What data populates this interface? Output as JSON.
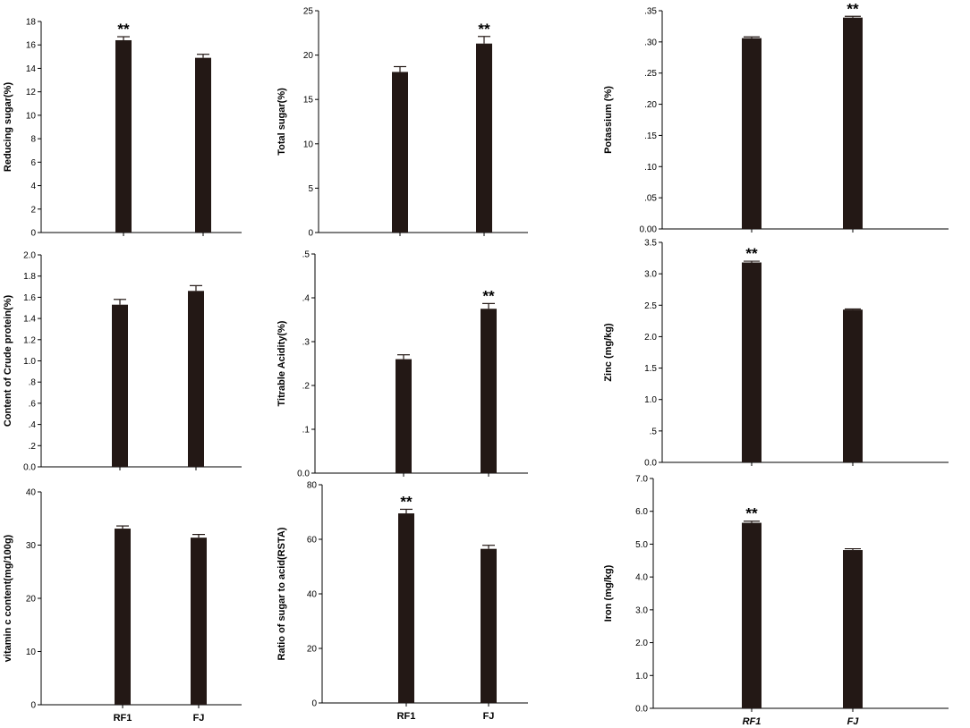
{
  "chart_data": [
    {
      "type": "bar",
      "categories": [
        "RF1",
        "FJ"
      ],
      "values": [
        16.4,
        14.9
      ],
      "errors": [
        0.3,
        0.3
      ],
      "significance": [
        "**",
        ""
      ],
      "ylabel": "Reducing sugar(%)",
      "ylim": [
        0,
        18
      ],
      "yticks": [
        "0",
        "2",
        "4",
        "6",
        "8",
        "10",
        "12",
        "14",
        "16",
        "18"
      ],
      "tick_values": [
        0,
        2,
        4,
        6,
        8,
        10,
        12,
        14,
        16,
        18
      ],
      "show_category_labels": false,
      "italic_categories": false
    },
    {
      "type": "bar",
      "categories": [
        "RF1",
        "FJ"
      ],
      "values": [
        18.1,
        21.3
      ],
      "errors": [
        0.6,
        0.8
      ],
      "significance": [
        "",
        "**"
      ],
      "ylabel": "Total sugar(%)",
      "ylim": [
        0,
        25
      ],
      "yticks": [
        "0",
        "5",
        "10",
        "15",
        "20",
        "25"
      ],
      "tick_values": [
        0,
        5,
        10,
        15,
        20,
        25
      ],
      "show_category_labels": false,
      "italic_categories": false
    },
    {
      "type": "bar",
      "categories": [
        "RF1",
        "FJ"
      ],
      "values": [
        0.306,
        0.339
      ],
      "errors": [
        0.002,
        0.002
      ],
      "significance": [
        "",
        "**"
      ],
      "ylabel": "Potassium (%)",
      "ylim": [
        0,
        0.35
      ],
      "yticks": [
        "0.00",
        ".05",
        ".10",
        ".15",
        ".20",
        ".25",
        ".30",
        ".35"
      ],
      "tick_values": [
        0,
        0.05,
        0.1,
        0.15,
        0.2,
        0.25,
        0.3,
        0.35
      ],
      "show_category_labels": false,
      "italic_categories": false
    },
    {
      "type": "bar",
      "categories": [
        "RF1",
        "FJ"
      ],
      "values": [
        1.53,
        1.66
      ],
      "errors": [
        0.05,
        0.05
      ],
      "significance": [
        "",
        ""
      ],
      "ylabel": "Content of Crude protein(%)",
      "ylim": [
        0,
        2.0
      ],
      "yticks": [
        "0.0",
        ".2",
        ".4",
        ".6",
        ".8",
        "1.0",
        "1.2",
        "1.4",
        "1.6",
        "1.8",
        "2.0"
      ],
      "tick_values": [
        0,
        0.2,
        0.4,
        0.6,
        0.8,
        1.0,
        1.2,
        1.4,
        1.6,
        1.8,
        2.0
      ],
      "show_category_labels": false,
      "italic_categories": false
    },
    {
      "type": "bar",
      "categories": [
        "RF1",
        "FJ"
      ],
      "values": [
        0.26,
        0.375
      ],
      "errors": [
        0.01,
        0.012
      ],
      "significance": [
        "",
        "**"
      ],
      "ylabel": "Titrable Acidity(%)",
      "ylim": [
        0,
        0.5
      ],
      "yticks": [
        "0.0",
        ".1",
        ".2",
        ".3",
        ".4",
        ".5"
      ],
      "tick_values": [
        0,
        0.1,
        0.2,
        0.3,
        0.4,
        0.5
      ],
      "show_category_labels": false,
      "italic_categories": false
    },
    {
      "type": "bar",
      "categories": [
        "RF1",
        "FJ"
      ],
      "values": [
        3.18,
        2.43
      ],
      "errors": [
        0.02,
        0.01
      ],
      "significance": [
        "**",
        ""
      ],
      "ylabel": "Zinc (mg/kg)",
      "ylim": [
        0,
        3.5
      ],
      "yticks": [
        "0.0",
        ".5",
        "1.0",
        "1.5",
        "2.0",
        "2.5",
        "3.0",
        "3.5"
      ],
      "tick_values": [
        0,
        0.5,
        1.0,
        1.5,
        2.0,
        2.5,
        3.0,
        3.5
      ],
      "show_category_labels": false,
      "italic_categories": false
    },
    {
      "type": "bar",
      "categories": [
        "RF1",
        "FJ"
      ],
      "values": [
        33.1,
        31.4
      ],
      "errors": [
        0.5,
        0.6
      ],
      "significance": [
        "",
        ""
      ],
      "ylabel": "vitamin c content(mg/100g)",
      "ylim": [
        0,
        40
      ],
      "yticks": [
        "0",
        "10",
        "20",
        "30",
        "40"
      ],
      "tick_values": [
        0,
        10,
        20,
        30,
        40
      ],
      "show_category_labels": true,
      "italic_categories": false
    },
    {
      "type": "bar",
      "categories": [
        "RF1",
        "FJ"
      ],
      "values": [
        69.5,
        56.5
      ],
      "errors": [
        1.5,
        1.3
      ],
      "significance": [
        "**",
        ""
      ],
      "ylabel": "Ratio of sugar to acid(RSTA)",
      "ylim": [
        0,
        80
      ],
      "yticks": [
        "0",
        "20",
        "40",
        "60",
        "80"
      ],
      "tick_values": [
        0,
        20,
        40,
        60,
        80
      ],
      "show_category_labels": true,
      "italic_categories": false
    },
    {
      "type": "bar",
      "categories": [
        "RF1",
        "FJ"
      ],
      "values": [
        5.65,
        4.82
      ],
      "errors": [
        0.05,
        0.04
      ],
      "significance": [
        "**",
        ""
      ],
      "ylabel": "Iron (mg/kg)",
      "ylim": [
        0,
        7.0
      ],
      "yticks": [
        "0.0",
        "1.0",
        "2.0",
        "3.0",
        "4.0",
        "5.0",
        "6.0",
        "7.0"
      ],
      "tick_values": [
        0,
        1,
        2,
        3,
        4,
        5,
        6,
        7
      ],
      "show_category_labels": true,
      "italic_categories": true
    }
  ],
  "style": {
    "bar_color": "#231815",
    "axis_color": "#000000"
  }
}
